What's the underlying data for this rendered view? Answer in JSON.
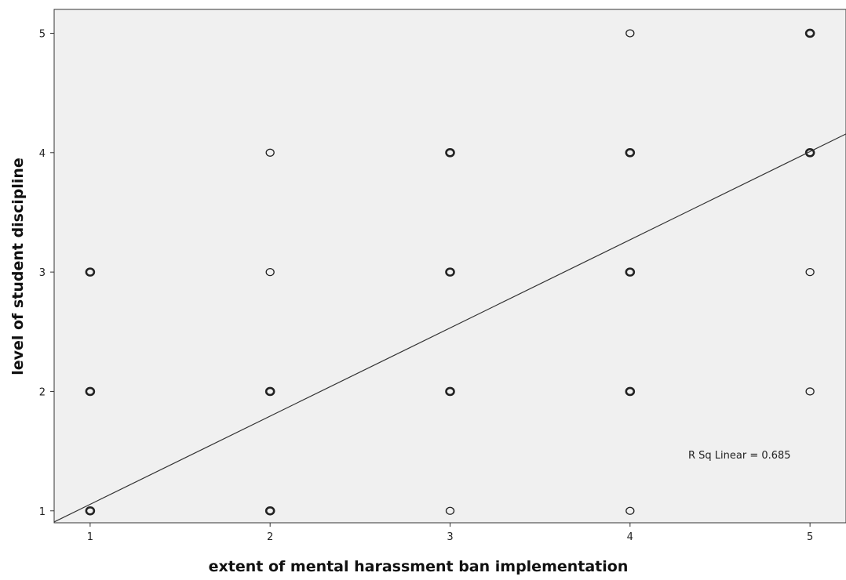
{
  "chart_data": {
    "type": "scatter",
    "xlabel": "extent of mental harassment ban implementation",
    "ylabel": "level of student discipline",
    "xlim": [
      0.8,
      5.2
    ],
    "ylim": [
      0.9,
      5.2
    ],
    "x_ticks": [
      "1",
      "2",
      "3",
      "4",
      "5"
    ],
    "y_ticks": [
      "1",
      "2",
      "3",
      "4",
      "5"
    ],
    "points": [
      {
        "x": 1,
        "y": 1,
        "bold": true
      },
      {
        "x": 1,
        "y": 2,
        "bold": true
      },
      {
        "x": 1,
        "y": 3,
        "bold": true
      },
      {
        "x": 2,
        "y": 1,
        "bold": true
      },
      {
        "x": 2,
        "y": 2,
        "bold": true
      },
      {
        "x": 2,
        "y": 3,
        "bold": false
      },
      {
        "x": 2,
        "y": 4,
        "bold": false
      },
      {
        "x": 3,
        "y": 1,
        "bold": false
      },
      {
        "x": 3,
        "y": 2,
        "bold": true
      },
      {
        "x": 3,
        "y": 3,
        "bold": true
      },
      {
        "x": 3,
        "y": 4,
        "bold": true
      },
      {
        "x": 4,
        "y": 1,
        "bold": false
      },
      {
        "x": 4,
        "y": 2,
        "bold": true
      },
      {
        "x": 4,
        "y": 3,
        "bold": true
      },
      {
        "x": 4,
        "y": 4,
        "bold": true
      },
      {
        "x": 4,
        "y": 5,
        "bold": false
      },
      {
        "x": 5,
        "y": 2,
        "bold": false
      },
      {
        "x": 5,
        "y": 3,
        "bold": false
      },
      {
        "x": 5,
        "y": 4,
        "bold": true
      },
      {
        "x": 5,
        "y": 5,
        "bold": true
      }
    ],
    "fit_line": {
      "x": [
        0.8,
        5.2
      ],
      "y": [
        0.907,
        4.157
      ]
    },
    "annotation": "R Sq Linear = 0.685",
    "grid": false,
    "colors": {
      "plot_background": "#f0f0f0",
      "marker": "#222222",
      "line": "#333333",
      "axis": "#333333"
    }
  }
}
